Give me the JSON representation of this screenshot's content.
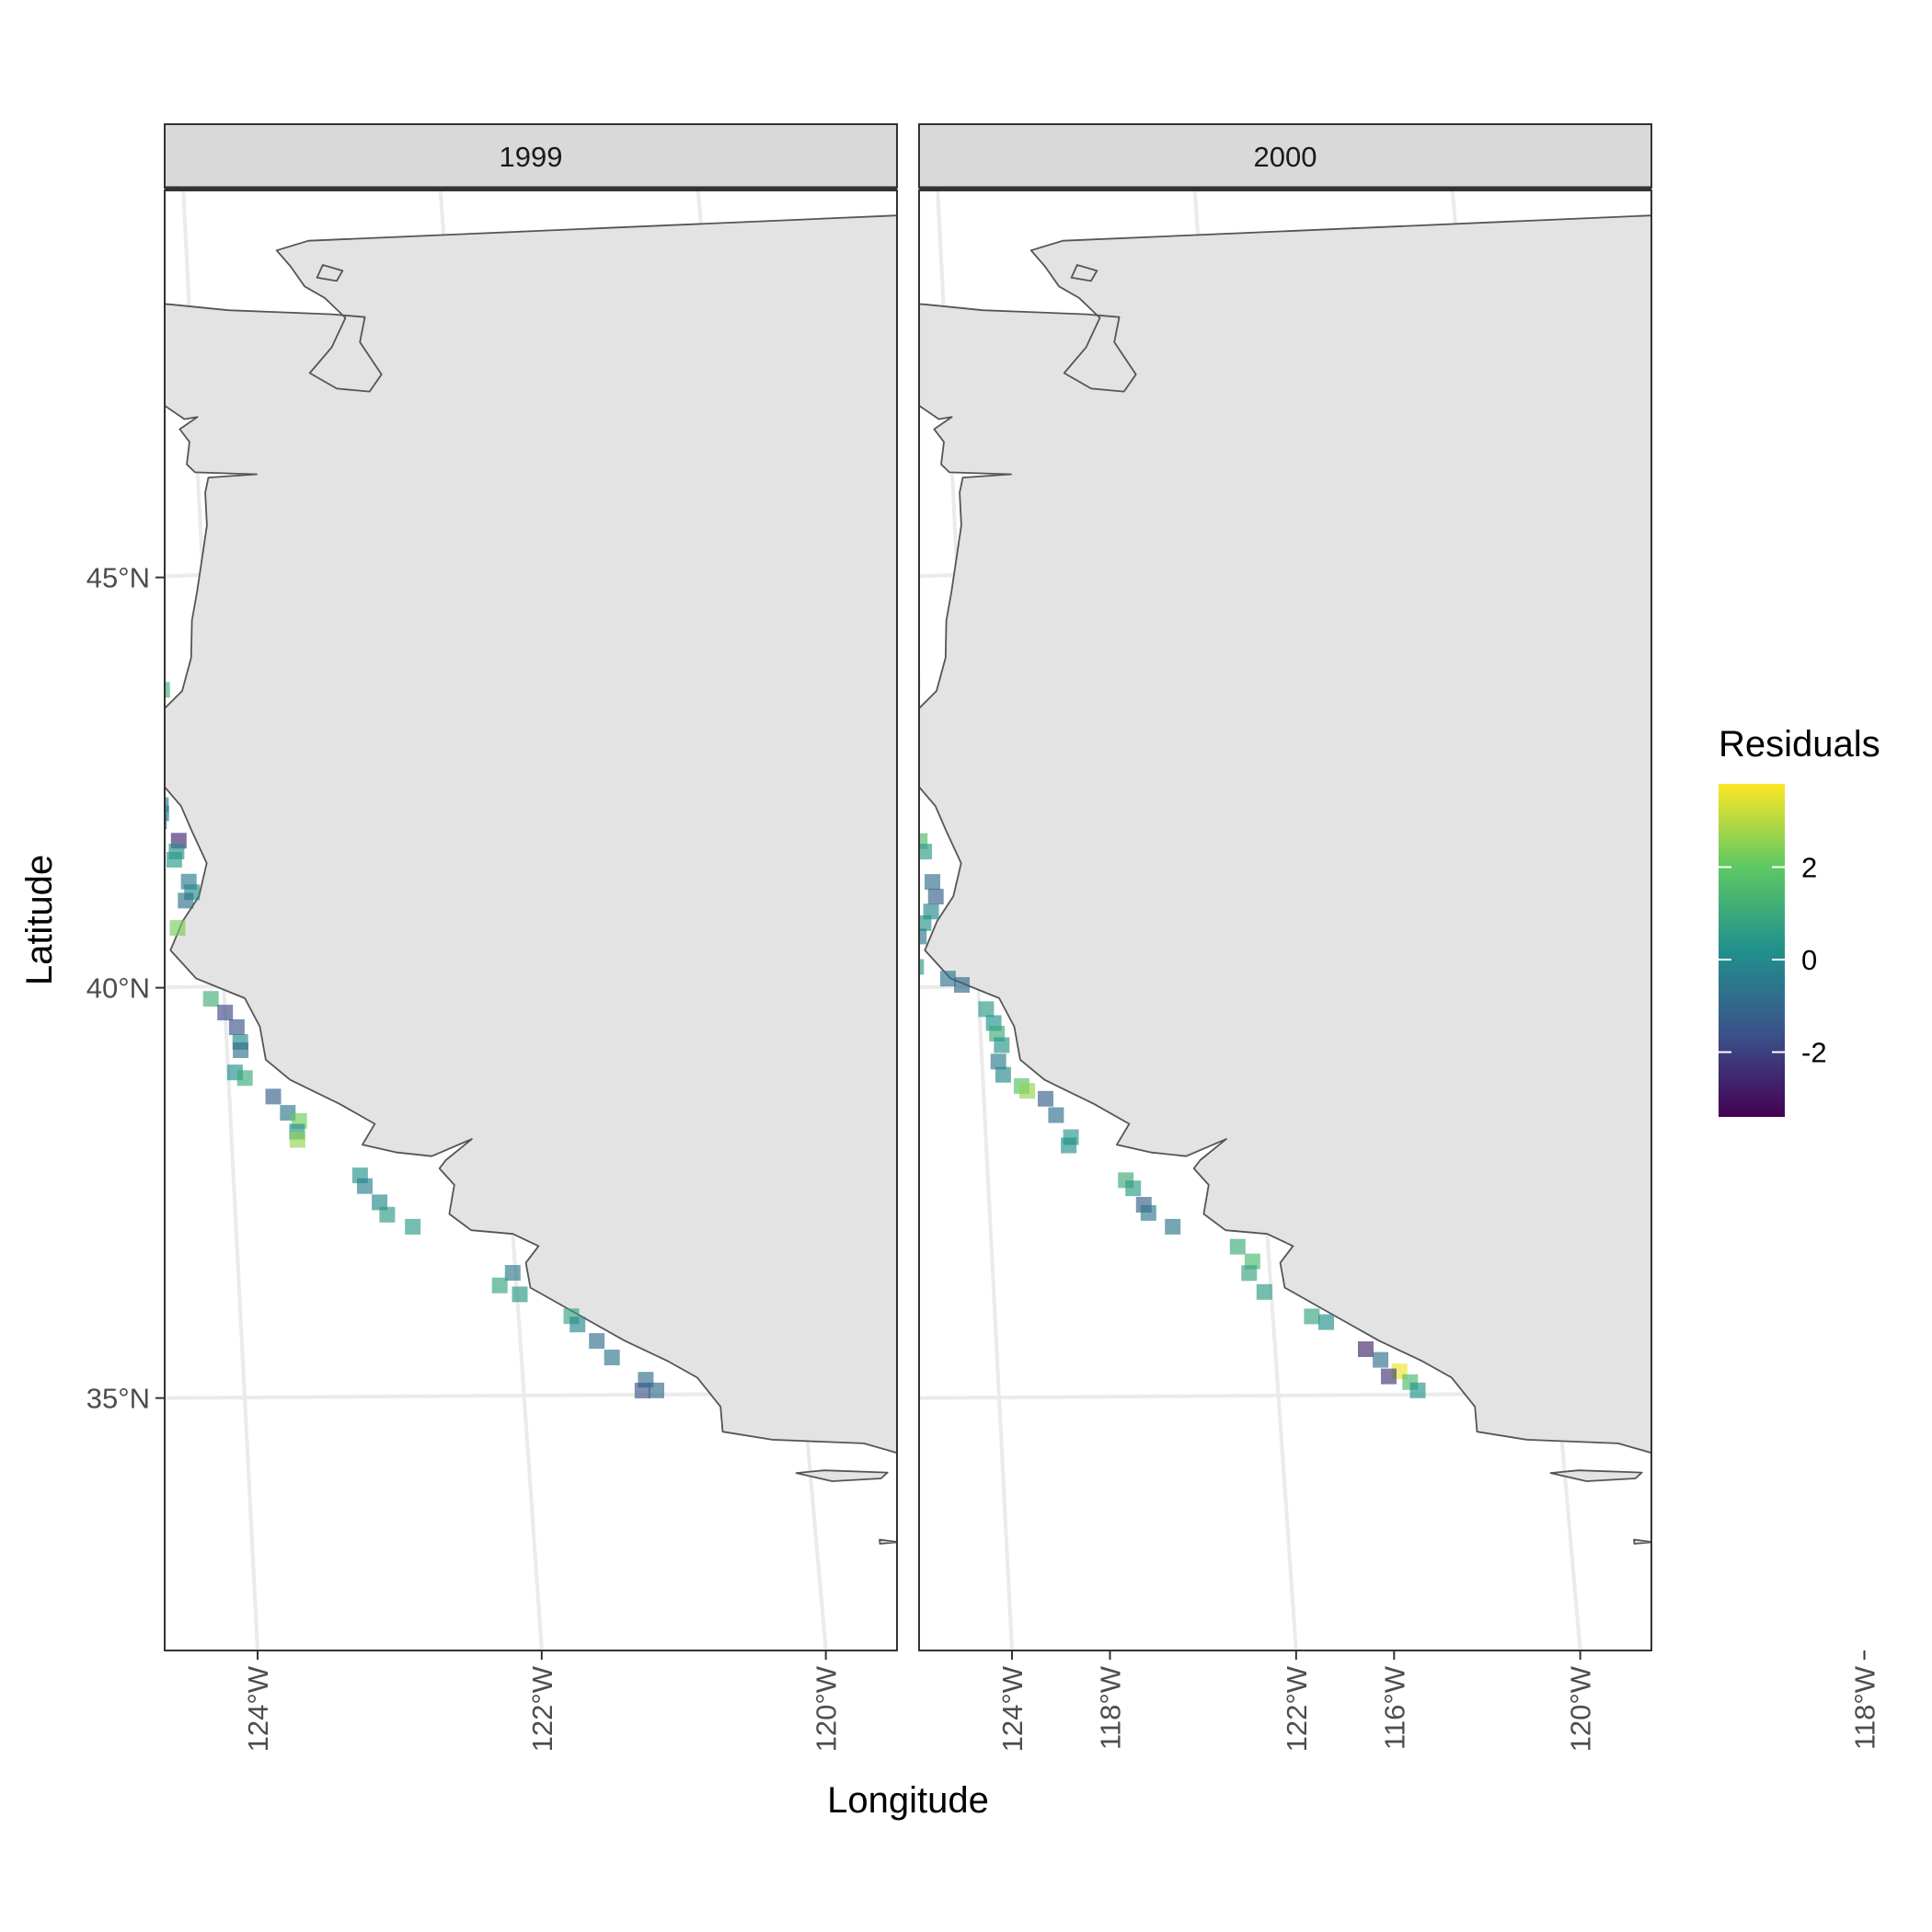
{
  "axis_labels": {
    "x": "Longitude",
    "y": "Latitude"
  },
  "legend": {
    "title": "Residuals",
    "min": -3.4,
    "max": 3.8,
    "ticks": [
      {
        "value": 2,
        "label": "2"
      },
      {
        "value": 0,
        "label": "0"
      },
      {
        "value": -2,
        "label": "-2"
      }
    ],
    "colors": [
      "#440154",
      "#3b528b",
      "#21908c",
      "#5dc863",
      "#fde725"
    ]
  },
  "colors": {
    "panel_border": "#333333",
    "strip_fill": "#d9d9d9",
    "grid": "#ebebeb",
    "land_fill": "#e3e3e3",
    "coastline": "#555555",
    "point_opacity": 0.65
  },
  "chart_data": {
    "type": "scatter",
    "map": "US West Coast (Washington, Oregon, California) residual map, faceted by year",
    "xlim": [
      -125.2,
      -115.0
    ],
    "ylim": [
      32.0,
      49.5
    ],
    "y_ticks": [
      {
        "value": 45,
        "label": "45°N"
      },
      {
        "value": 40,
        "label": "40°N"
      },
      {
        "value": 35,
        "label": "35°N"
      }
    ],
    "x_ticks": [
      {
        "value": -124,
        "label": "124°W"
      },
      {
        "value": -122,
        "label": "122°W"
      },
      {
        "value": -120,
        "label": "120°W"
      },
      {
        "value": -118,
        "label": "118°W"
      },
      {
        "value": -116,
        "label": "116°W"
      }
    ],
    "panels": [
      {
        "title": "1999",
        "points": [
          {
            "lon": -124.48,
            "lat": 44.45,
            "residual": -0.3
          },
          {
            "lon": -124.68,
            "lat": 44.22,
            "residual": 1.0
          },
          {
            "lon": -124.7,
            "lat": 44.12,
            "residual": 1.2
          },
          {
            "lon": -124.45,
            "lat": 43.92,
            "residual": 0.0
          },
          {
            "lon": -124.38,
            "lat": 43.75,
            "residual": 0.5
          },
          {
            "lon": -124.35,
            "lat": 43.62,
            "residual": 1.2
          },
          {
            "lon": -124.45,
            "lat": 43.42,
            "residual": -0.8
          },
          {
            "lon": -124.6,
            "lat": 43.12,
            "residual": 2.2
          },
          {
            "lon": -124.62,
            "lat": 43.0,
            "residual": 1.8
          },
          {
            "lon": -124.65,
            "lat": 42.9,
            "residual": 1.6
          },
          {
            "lon": -124.5,
            "lat": 42.72,
            "residual": 0.5
          },
          {
            "lon": -124.45,
            "lat": 42.35,
            "residual": 2.6
          },
          {
            "lon": -124.4,
            "lat": 42.22,
            "residual": -0.5
          },
          {
            "lon": -124.4,
            "lat": 42.12,
            "residual": 0.0
          },
          {
            "lon": -124.42,
            "lat": 42.02,
            "residual": -1.0
          },
          {
            "lon": -124.28,
            "lat": 41.78,
            "residual": -2.6
          },
          {
            "lon": -124.3,
            "lat": 41.65,
            "residual": 0.2
          },
          {
            "lon": -124.32,
            "lat": 41.55,
            "residual": 0.5
          },
          {
            "lon": -124.22,
            "lat": 41.28,
            "residual": -0.5
          },
          {
            "lon": -124.2,
            "lat": 41.15,
            "residual": 0.0
          },
          {
            "lon": -124.25,
            "lat": 41.05,
            "residual": -0.8
          },
          {
            "lon": -124.32,
            "lat": 40.72,
            "residual": 2.3
          },
          {
            "lon": -124.5,
            "lat": 40.55,
            "residual": 1.5
          },
          {
            "lon": -124.1,
            "lat": 39.85,
            "residual": 1.2
          },
          {
            "lon": -124.0,
            "lat": 39.68,
            "residual": -1.8
          },
          {
            "lon": -123.92,
            "lat": 39.5,
            "residual": -1.5
          },
          {
            "lon": -123.9,
            "lat": 39.32,
            "residual": 0.0
          },
          {
            "lon": -123.9,
            "lat": 39.22,
            "residual": -0.8
          },
          {
            "lon": -123.95,
            "lat": 38.95,
            "residual": 0.2
          },
          {
            "lon": -123.88,
            "lat": 38.88,
            "residual": 1.0
          },
          {
            "lon": -123.68,
            "lat": 38.65,
            "residual": -1.2
          },
          {
            "lon": -123.58,
            "lat": 38.45,
            "residual": -0.5
          },
          {
            "lon": -123.5,
            "lat": 38.35,
            "residual": 2.2
          },
          {
            "lon": -123.52,
            "lat": 38.22,
            "residual": 0.2
          },
          {
            "lon": -123.52,
            "lat": 38.12,
            "residual": 2.6
          },
          {
            "lon": -123.08,
            "lat": 37.68,
            "residual": 0.3
          },
          {
            "lon": -123.05,
            "lat": 37.55,
            "residual": -0.3
          },
          {
            "lon": -122.95,
            "lat": 37.35,
            "residual": 0.0
          },
          {
            "lon": -122.9,
            "lat": 37.2,
            "residual": 0.5
          },
          {
            "lon": -122.72,
            "lat": 37.05,
            "residual": 0.5
          },
          {
            "lon": -122.02,
            "lat": 36.48,
            "residual": -0.5
          },
          {
            "lon": -122.12,
            "lat": 36.33,
            "residual": 0.8
          },
          {
            "lon": -121.98,
            "lat": 36.22,
            "residual": 0.4
          },
          {
            "lon": -121.62,
            "lat": 35.95,
            "residual": 0.8
          },
          {
            "lon": -121.58,
            "lat": 35.85,
            "residual": 0.0
          },
          {
            "lon": -121.45,
            "lat": 35.65,
            "residual": -0.8
          },
          {
            "lon": -121.35,
            "lat": 35.45,
            "residual": -0.6
          },
          {
            "lon": -121.12,
            "lat": 35.18,
            "residual": -0.8
          },
          {
            "lon": -121.15,
            "lat": 35.05,
            "residual": -1.5
          },
          {
            "lon": -121.05,
            "lat": 35.05,
            "residual": -0.9
          }
        ]
      },
      {
        "title": "2000",
        "points": [
          {
            "lon": -124.58,
            "lat": 44.45,
            "residual": -1.5
          },
          {
            "lon": -124.7,
            "lat": 44.12,
            "residual": 0.0
          },
          {
            "lon": -124.62,
            "lat": 43.92,
            "residual": -0.8
          },
          {
            "lon": -124.38,
            "lat": 43.68,
            "residual": 0.8
          },
          {
            "lon": -124.4,
            "lat": 43.55,
            "residual": 0.3
          },
          {
            "lon": -124.55,
            "lat": 43.38,
            "residual": -0.8
          },
          {
            "lon": -124.65,
            "lat": 43.12,
            "residual": -2.8
          },
          {
            "lon": -124.68,
            "lat": 42.98,
            "residual": -1.2
          },
          {
            "lon": -124.72,
            "lat": 42.85,
            "residual": -1.0
          },
          {
            "lon": -124.55,
            "lat": 42.65,
            "residual": -0.5
          },
          {
            "lon": -124.55,
            "lat": 42.35,
            "residual": 1.0
          },
          {
            "lon": -124.45,
            "lat": 42.12,
            "residual": 0.0
          },
          {
            "lon": -124.48,
            "lat": 42.02,
            "residual": -1.0
          },
          {
            "lon": -124.38,
            "lat": 41.78,
            "residual": 1.5
          },
          {
            "lon": -124.35,
            "lat": 41.65,
            "residual": 0.5
          },
          {
            "lon": -124.3,
            "lat": 41.28,
            "residual": -0.8
          },
          {
            "lon": -124.28,
            "lat": 41.1,
            "residual": -1.2
          },
          {
            "lon": -124.32,
            "lat": 40.92,
            "residual": 0.0
          },
          {
            "lon": -124.38,
            "lat": 40.78,
            "residual": 0.3
          },
          {
            "lon": -124.42,
            "lat": 40.62,
            "residual": -0.5
          },
          {
            "lon": -124.58,
            "lat": 40.55,
            "residual": 2.8
          },
          {
            "lon": -124.48,
            "lat": 40.38,
            "residual": -2.3
          },
          {
            "lon": -124.45,
            "lat": 40.25,
            "residual": 0.5
          },
          {
            "lon": -124.22,
            "lat": 40.1,
            "residual": -0.6
          },
          {
            "lon": -124.12,
            "lat": 40.02,
            "residual": -1.0
          },
          {
            "lon": -123.95,
            "lat": 39.72,
            "residual": 0.5
          },
          {
            "lon": -123.9,
            "lat": 39.55,
            "residual": 0.2
          },
          {
            "lon": -123.88,
            "lat": 39.42,
            "residual": 1.0
          },
          {
            "lon": -123.85,
            "lat": 39.28,
            "residual": 0.3
          },
          {
            "lon": -123.88,
            "lat": 39.08,
            "residual": -0.5
          },
          {
            "lon": -123.85,
            "lat": 38.92,
            "residual": 0.0
          },
          {
            "lon": -123.72,
            "lat": 38.78,
            "residual": 1.8
          },
          {
            "lon": -123.68,
            "lat": 38.72,
            "residual": 2.6
          },
          {
            "lon": -123.55,
            "lat": 38.62,
            "residual": -1.2
          },
          {
            "lon": -123.48,
            "lat": 38.42,
            "residual": -0.8
          },
          {
            "lon": -123.38,
            "lat": 38.15,
            "residual": 0.4
          },
          {
            "lon": -123.4,
            "lat": 38.05,
            "residual": 0.2
          },
          {
            "lon": -123.0,
            "lat": 37.62,
            "residual": 1.0
          },
          {
            "lon": -122.95,
            "lat": 37.52,
            "residual": 0.5
          },
          {
            "lon": -122.88,
            "lat": 37.32,
            "residual": -1.2
          },
          {
            "lon": -122.85,
            "lat": 37.22,
            "residual": -0.5
          },
          {
            "lon": -122.68,
            "lat": 37.05,
            "residual": -0.6
          },
          {
            "lon": -122.22,
            "lat": 36.8,
            "residual": 1.0
          },
          {
            "lon": -122.12,
            "lat": 36.62,
            "residual": 1.5
          },
          {
            "lon": -122.15,
            "lat": 36.48,
            "residual": 0.8
          },
          {
            "lon": -122.05,
            "lat": 36.25,
            "residual": 0.5
          },
          {
            "lon": -121.72,
            "lat": 35.95,
            "residual": 0.8
          },
          {
            "lon": -121.62,
            "lat": 35.88,
            "residual": 0.2
          },
          {
            "lon": -121.35,
            "lat": 35.55,
            "residual": -2.6
          },
          {
            "lon": -121.25,
            "lat": 35.42,
            "residual": -0.8
          },
          {
            "lon": -121.12,
            "lat": 35.28,
            "residual": 3.6
          },
          {
            "lon": -121.2,
            "lat": 35.22,
            "residual": -2.2
          },
          {
            "lon": -121.05,
            "lat": 35.15,
            "residual": 1.5
          },
          {
            "lon": -121.0,
            "lat": 35.05,
            "residual": 0.3
          }
        ]
      }
    ]
  }
}
